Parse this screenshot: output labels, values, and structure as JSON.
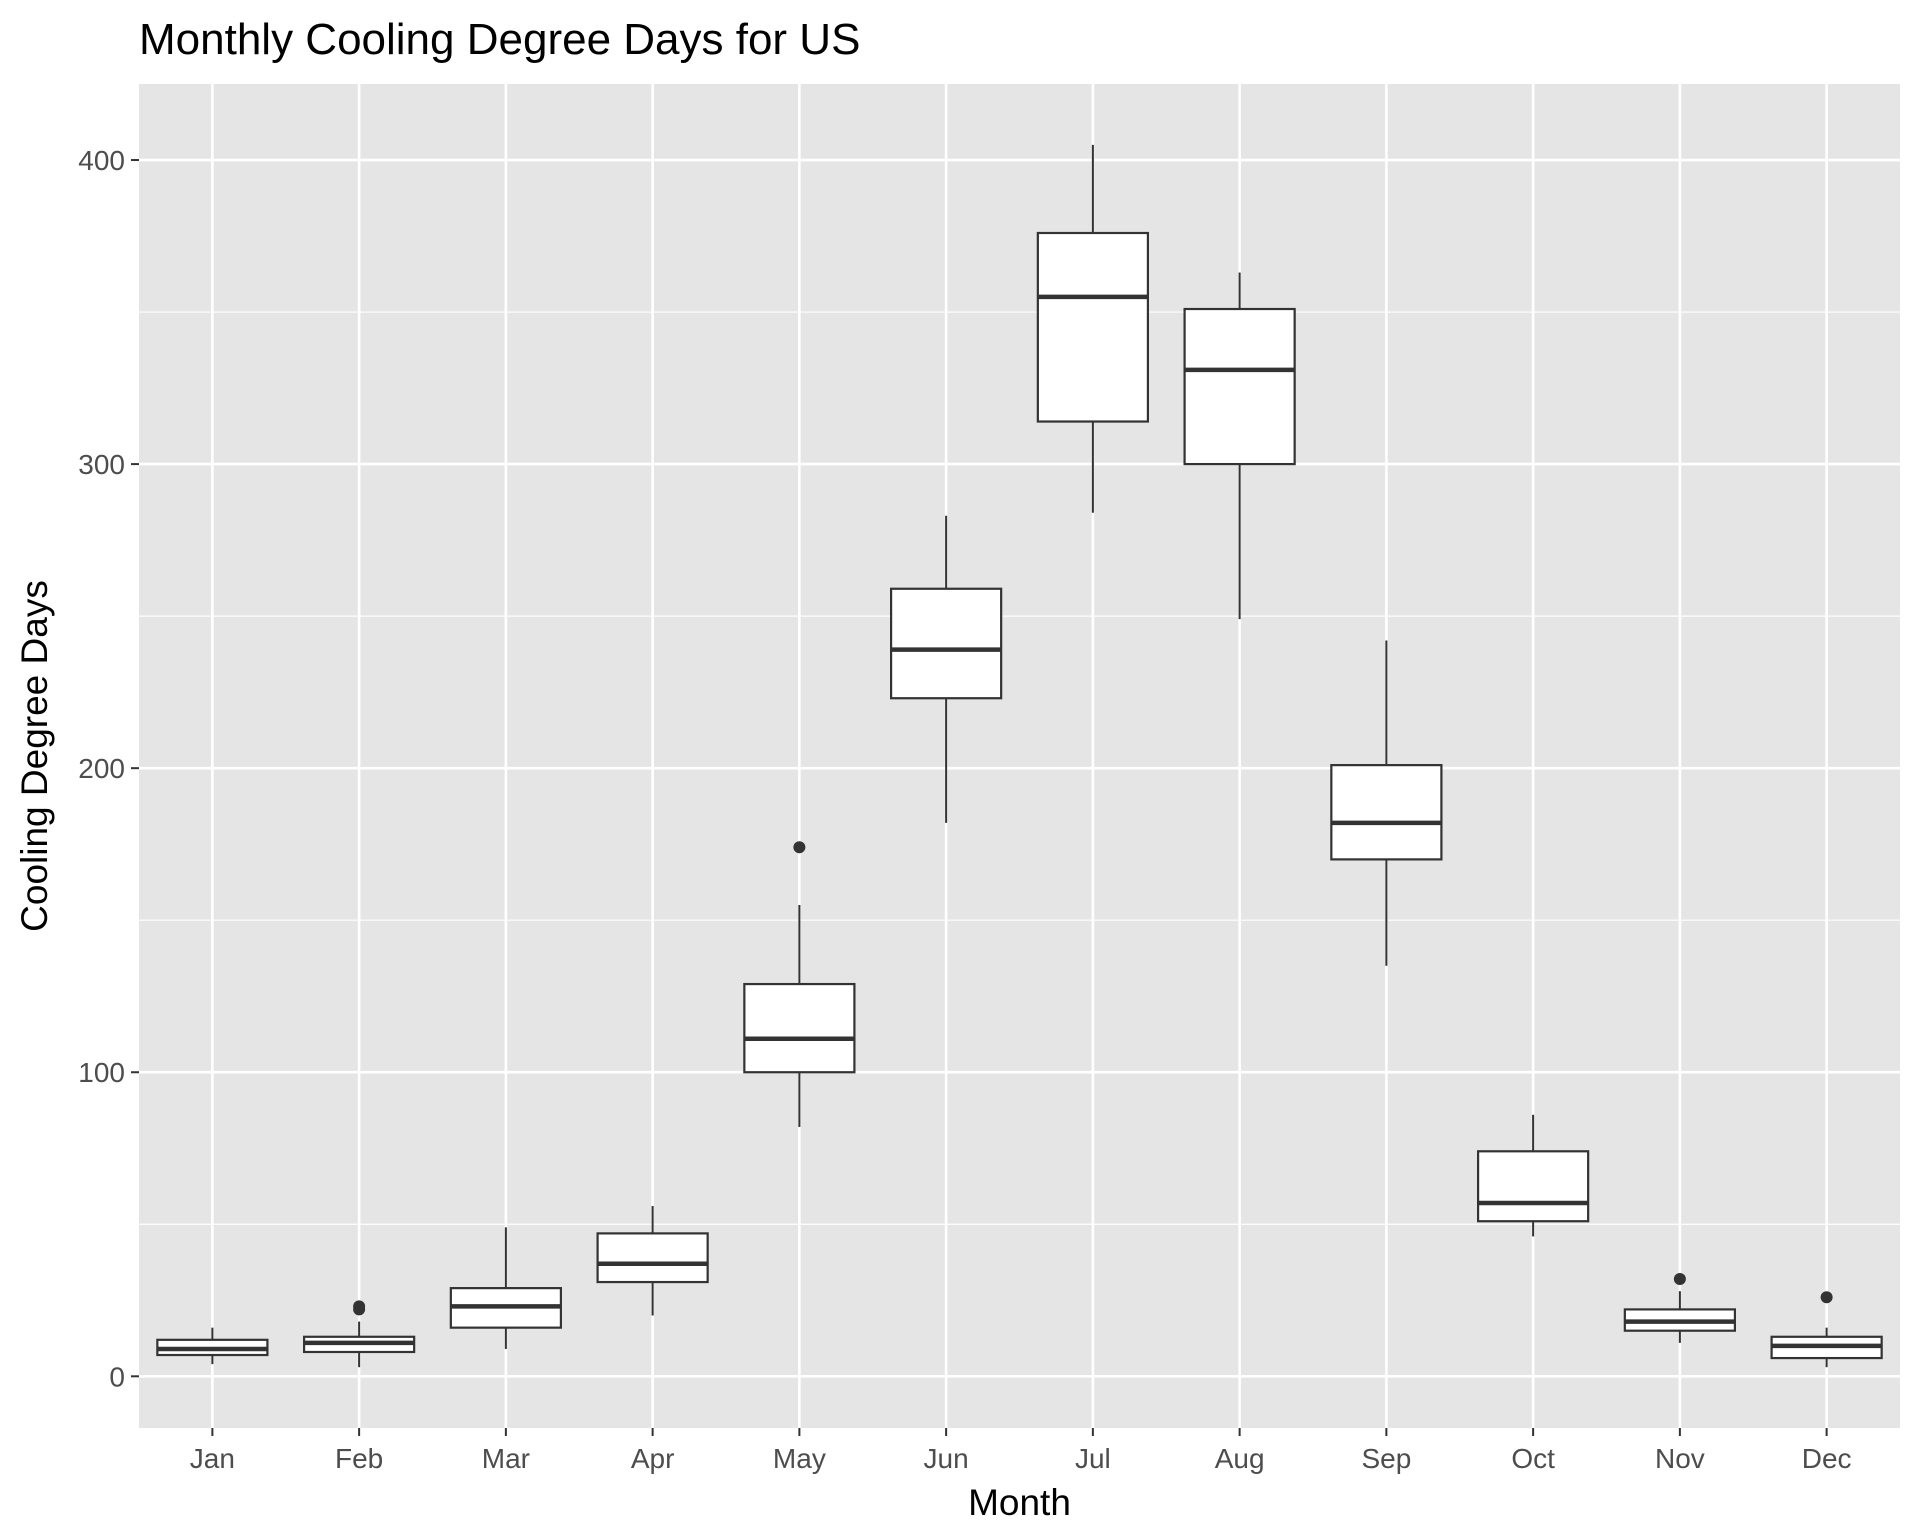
{
  "chart_data": {
    "type": "boxplot",
    "title": "Monthly Cooling Degree Days for US",
    "xlabel": "Month",
    "ylabel": "Cooling Degree Days",
    "ylim": [
      -17,
      425
    ],
    "y_ticks": [
      0,
      100,
      200,
      300,
      400
    ],
    "y_minor_ticks": [
      50,
      150,
      250,
      350
    ],
    "grid": true,
    "legend": "none",
    "panel_background": "#e5e5e5",
    "grid_color": "#ffffff",
    "box_fill": "#ffffff",
    "box_stroke": "#333333",
    "categories": [
      "Jan",
      "Feb",
      "Mar",
      "Apr",
      "May",
      "Jun",
      "Jul",
      "Aug",
      "Sep",
      "Oct",
      "Nov",
      "Dec"
    ],
    "boxes": [
      {
        "month": "Jan",
        "whisker_low": 4,
        "q1": 7,
        "median": 9,
        "q3": 12,
        "whisker_high": 16,
        "outliers": []
      },
      {
        "month": "Feb",
        "whisker_low": 3,
        "q1": 8,
        "median": 11,
        "q3": 13,
        "whisker_high": 18,
        "outliers": [
          22,
          23
        ]
      },
      {
        "month": "Mar",
        "whisker_low": 9,
        "q1": 16,
        "median": 23,
        "q3": 29,
        "whisker_high": 49,
        "outliers": []
      },
      {
        "month": "Apr",
        "whisker_low": 20,
        "q1": 31,
        "median": 37,
        "q3": 47,
        "whisker_high": 56,
        "outliers": []
      },
      {
        "month": "May",
        "whisker_low": 82,
        "q1": 100,
        "median": 111,
        "q3": 129,
        "whisker_high": 155,
        "outliers": [
          174
        ]
      },
      {
        "month": "Jun",
        "whisker_low": 182,
        "q1": 223,
        "median": 239,
        "q3": 259,
        "whisker_high": 283,
        "outliers": []
      },
      {
        "month": "Jul",
        "whisker_low": 284,
        "q1": 314,
        "median": 355,
        "q3": 376,
        "whisker_high": 405,
        "outliers": []
      },
      {
        "month": "Aug",
        "whisker_low": 249,
        "q1": 300,
        "median": 331,
        "q3": 351,
        "whisker_high": 363,
        "outliers": []
      },
      {
        "month": "Sep",
        "whisker_low": 135,
        "q1": 170,
        "median": 182,
        "q3": 201,
        "whisker_high": 242,
        "outliers": []
      },
      {
        "month": "Oct",
        "whisker_low": 46,
        "q1": 51,
        "median": 57,
        "q3": 74,
        "whisker_high": 86,
        "outliers": []
      },
      {
        "month": "Nov",
        "whisker_low": 11,
        "q1": 15,
        "median": 18,
        "q3": 22,
        "whisker_high": 28,
        "outliers": [
          32
        ]
      },
      {
        "month": "Dec",
        "whisker_low": 3,
        "q1": 6,
        "median": 10,
        "q3": 13,
        "whisker_high": 16,
        "outliers": [
          26
        ]
      }
    ]
  }
}
